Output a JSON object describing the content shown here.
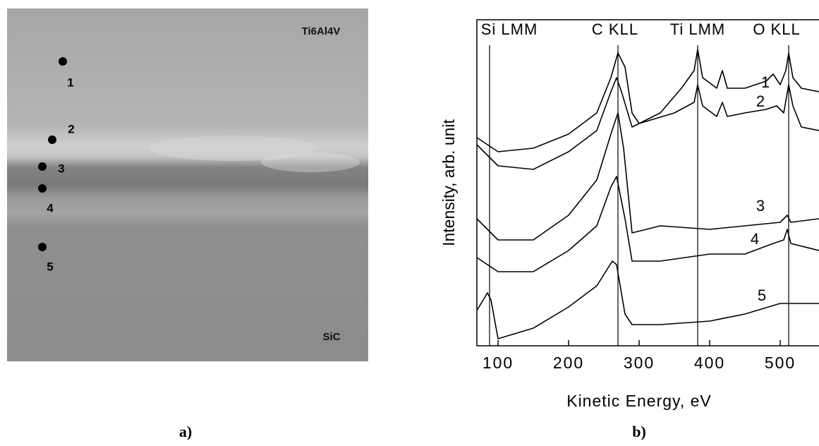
{
  "image_panel": {
    "caption": "a)",
    "material_top": "Ti6Al4V",
    "material_bottom": "SiC",
    "points": [
      "1",
      "2",
      "3",
      "4",
      "5"
    ]
  },
  "chart_data": {
    "type": "line",
    "caption": "b)",
    "xlabel": "Kinetic Energy, eV",
    "ylabel": "Intensity, arb. unit",
    "xlim": [
      70,
      555
    ],
    "xticks": [
      100,
      200,
      300,
      400,
      500
    ],
    "ylim": [
      0,
      460
    ],
    "peaks": [
      {
        "x": 88,
        "label": "Si LMM"
      },
      {
        "x": 270,
        "label": "C KLL"
      },
      {
        "x": 383,
        "label": "Ti LMM"
      },
      {
        "x": 512,
        "label": "O KLL"
      }
    ],
    "series": [
      {
        "name": "1",
        "color": "#000000",
        "x": [
          70,
          100,
          150,
          200,
          240,
          260,
          270,
          280,
          290,
          300,
          330,
          360,
          378,
          383,
          390,
          410,
          418,
          425,
          450,
          480,
          490,
          500,
          508,
          512,
          518,
          530,
          555
        ],
        "values": [
          295,
          275,
          280,
          300,
          330,
          380,
          415,
          395,
          330,
          315,
          330,
          365,
          390,
          420,
          380,
          365,
          390,
          365,
          365,
          375,
          385,
          370,
          390,
          415,
          380,
          365,
          360
        ]
      },
      {
        "name": "2",
        "color": "#000000",
        "x": [
          70,
          100,
          150,
          200,
          240,
          260,
          268,
          275,
          290,
          300,
          350,
          378,
          383,
          390,
          410,
          418,
          425,
          450,
          480,
          495,
          505,
          512,
          518,
          530,
          555
        ],
        "values": [
          285,
          255,
          250,
          275,
          305,
          360,
          380,
          360,
          310,
          315,
          330,
          345,
          370,
          340,
          325,
          345,
          325,
          330,
          335,
          340,
          330,
          370,
          340,
          310,
          305
        ]
      },
      {
        "name": "3",
        "color": "#000000",
        "x": [
          70,
          100,
          150,
          200,
          240,
          260,
          270,
          278,
          290,
          330,
          400,
          450,
          500,
          510,
          515,
          555
        ],
        "values": [
          180,
          150,
          150,
          185,
          235,
          300,
          330,
          280,
          160,
          170,
          165,
          170,
          175,
          185,
          175,
          180
        ]
      },
      {
        "name": "4",
        "color": "#000000",
        "x": [
          70,
          100,
          150,
          200,
          240,
          260,
          268,
          280,
          290,
          330,
          400,
          450,
          490,
          505,
          510,
          515,
          555
        ],
        "values": [
          125,
          105,
          105,
          135,
          170,
          225,
          240,
          180,
          120,
          120,
          130,
          130,
          145,
          150,
          165,
          145,
          135
        ]
      },
      {
        "name": "5",
        "color": "#000000",
        "x": [
          70,
          85,
          90,
          100,
          150,
          200,
          240,
          262,
          268,
          280,
          290,
          330,
          400,
          450,
          500,
          555
        ],
        "values": [
          50,
          75,
          65,
          10,
          25,
          55,
          85,
          120,
          115,
          45,
          30,
          30,
          35,
          45,
          60,
          60
        ]
      }
    ]
  }
}
